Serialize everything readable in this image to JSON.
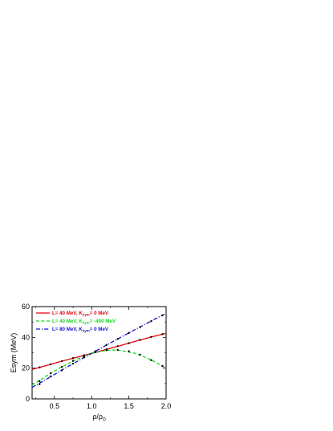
{
  "chart_data": {
    "type": "line",
    "xlabel": "ρ/ρ",
    "xlabel_sub": "0",
    "ylabel": "Esym (MeV)",
    "xlim": [
      0.2,
      2.0
    ],
    "ylim": [
      0,
      60
    ],
    "xticks": [
      0.5,
      1.0,
      1.5,
      2.0
    ],
    "xtick_labels": [
      "0.5",
      "1.0",
      "1.5",
      "2.0"
    ],
    "yticks": [
      0,
      20,
      40,
      60
    ],
    "ytick_labels": [
      "0",
      "20",
      "40",
      "60"
    ],
    "grid": false,
    "legend_position": "top-left",
    "series": [
      {
        "name_main": "L= 40 MeV, K",
        "name_sub": "sym",
        "name_tail": "= 0 MeV",
        "color": "#e8000b",
        "style": "solid",
        "x": [
          0.2,
          0.4,
          0.6,
          0.8,
          1.0,
          1.2,
          1.4,
          1.6,
          1.8,
          2.0
        ],
        "y": [
          19.2,
          21.8,
          24.5,
          27.1,
          29.6,
          32.2,
          34.8,
          37.6,
          40.2,
          42.6
        ]
      },
      {
        "name_main": "L= 40 MeV, K",
        "name_sub": "sym",
        "name_tail": "= -400 MeV",
        "color": "#14d81a",
        "style": "dash",
        "x": [
          0.2,
          0.4,
          0.6,
          0.8,
          1.0,
          1.2,
          1.3,
          1.4,
          1.6,
          1.8,
          2.0
        ],
        "y": [
          9.0,
          15.2,
          20.8,
          25.8,
          29.6,
          31.6,
          31.8,
          31.4,
          29.4,
          25.4,
          20.0
        ]
      },
      {
        "name_main": "L= 80 MeV, K",
        "name_sub": "sym",
        "name_tail": "= 0 MeV",
        "color": "#1010d8",
        "style": "dashdot",
        "x": [
          0.2,
          0.4,
          0.6,
          0.8,
          1.0,
          1.2,
          1.4,
          1.6,
          1.8,
          2.0
        ],
        "y": [
          7.5,
          13.0,
          18.8,
          24.2,
          29.6,
          35.0,
          40.3,
          45.5,
          50.6,
          55.6
        ]
      }
    ],
    "reference_points": [
      {
        "x": [
          0.3,
          0.45,
          0.6,
          0.75,
          0.9,
          1.05,
          1.2,
          1.35,
          1.5,
          1.65,
          1.8,
          1.95
        ],
        "y": [
          20.5,
          22.5,
          24.5,
          26.5,
          28.4,
          30.4,
          32.2,
          34.3,
          36.2,
          38.3,
          40.3,
          42.1
        ]
      },
      {
        "x": [
          0.3,
          0.45,
          0.6,
          0.75,
          0.9,
          1.05,
          1.2,
          1.35,
          1.5,
          1.65,
          1.8,
          1.95
        ],
        "y": [
          11.5,
          16.7,
          20.8,
          24.7,
          27.9,
          30.4,
          31.7,
          31.9,
          31.0,
          28.8,
          25.2,
          21.4
        ]
      },
      {
        "x": [
          0.3,
          0.45,
          0.6,
          0.75,
          0.9,
          1.05,
          1.2,
          1.35,
          1.5,
          1.65,
          1.8,
          1.95
        ],
        "y": [
          9.5,
          14.6,
          18.6,
          22.9,
          27.0,
          31.0,
          35.1,
          39.0,
          42.9,
          46.7,
          50.5,
          54.3
        ]
      }
    ]
  }
}
